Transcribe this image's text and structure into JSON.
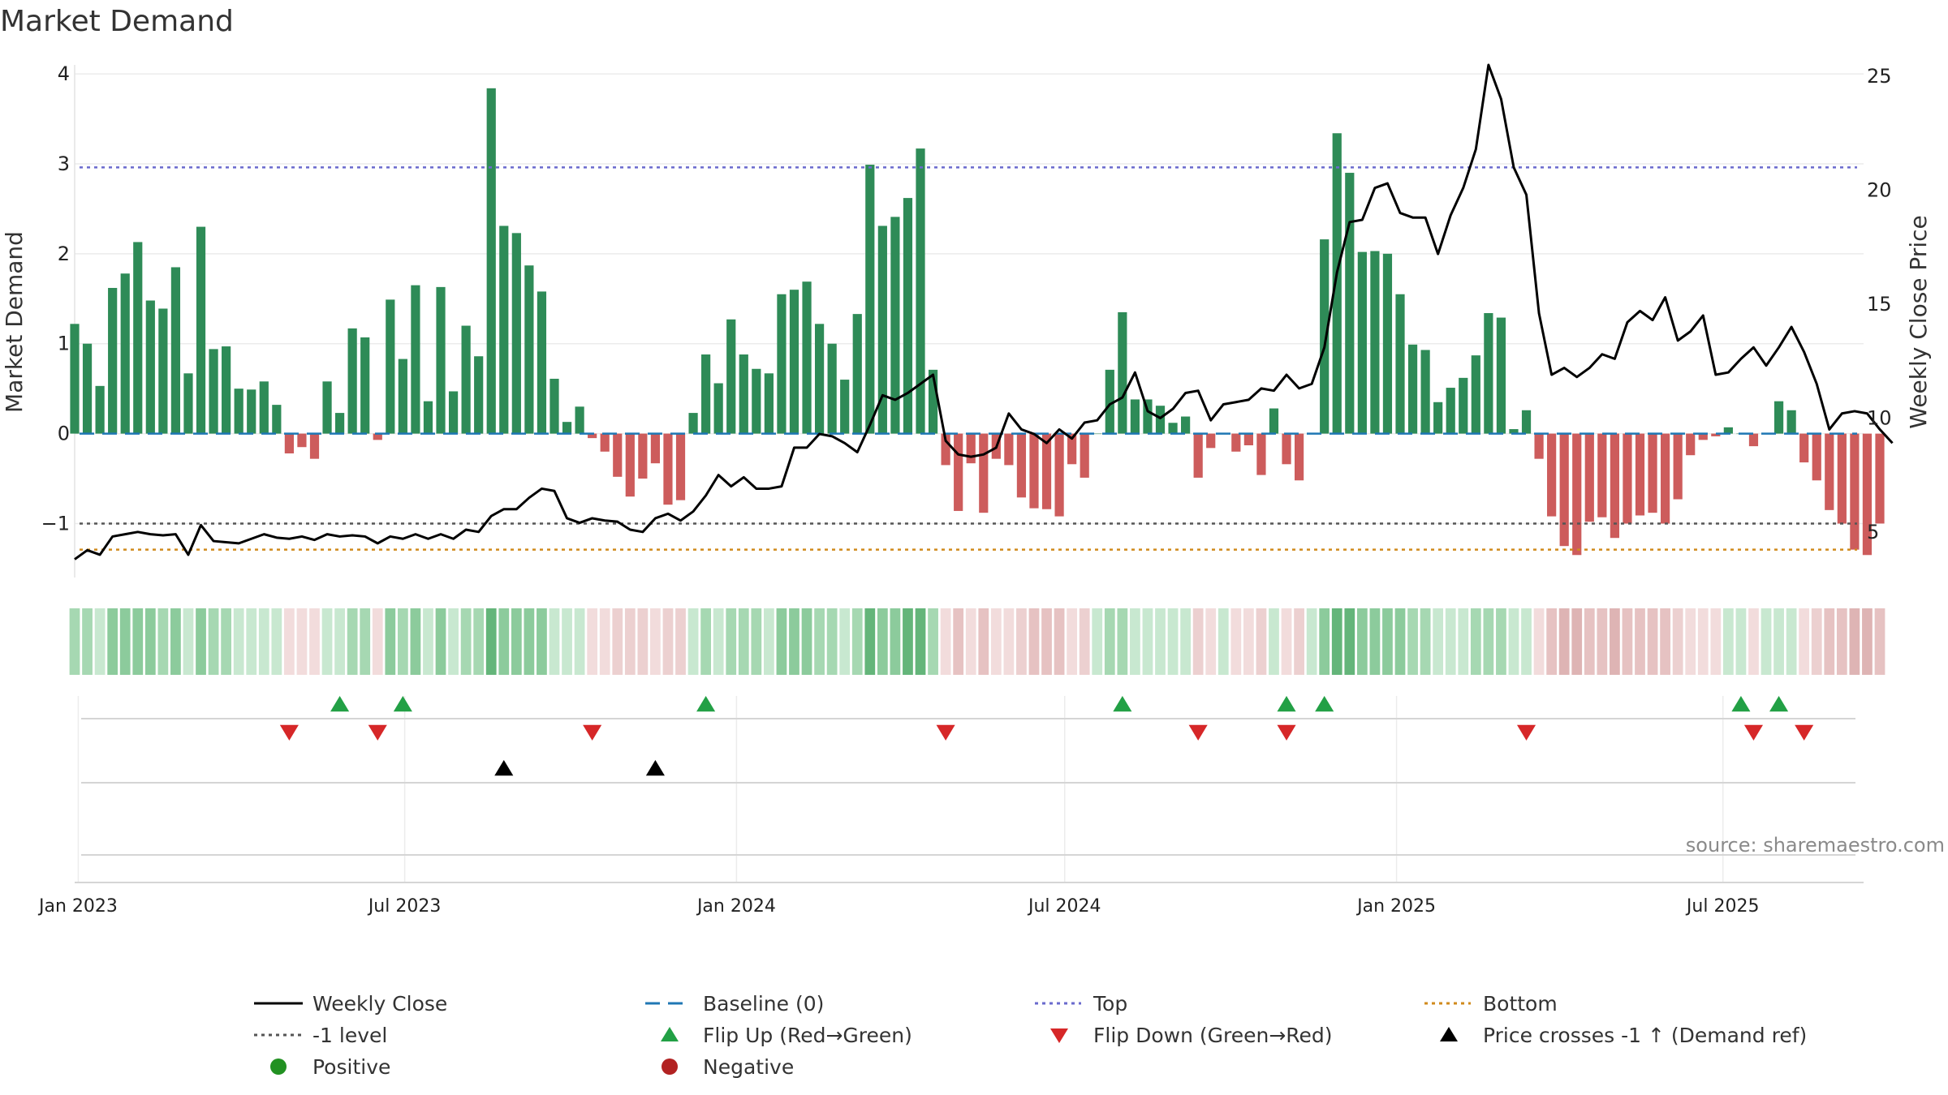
{
  "chart_data": {
    "type": "bar",
    "title": "Market Demand",
    "ylabel": "Market Demand",
    "y2label": "Weekly Close Price",
    "ylim": [
      -1.6,
      4.1
    ],
    "y2lim": [
      3.0,
      25.5
    ],
    "yticks": [
      -1,
      0,
      1,
      2,
      3,
      4
    ],
    "y2ticks": [
      5,
      10,
      15,
      20,
      25
    ],
    "xdomain": [
      "2022-12-30",
      "2025-09-17"
    ],
    "xticks": [
      {
        "date": "2023-01-01",
        "label": "Jan 2023"
      },
      {
        "date": "2023-07-01",
        "label": "Jul 2023"
      },
      {
        "date": "2024-01-01",
        "label": "Jan 2024"
      },
      {
        "date": "2024-07-01",
        "label": "Jul 2024"
      },
      {
        "date": "2025-01-01",
        "label": "Jan 2025"
      },
      {
        "date": "2025-07-01",
        "label": "Jul 2025"
      }
    ],
    "start_date": "2022-12-30",
    "interval_days": 7,
    "demand": [
      1.22,
      1.0,
      0.53,
      1.62,
      1.78,
      2.13,
      1.48,
      1.39,
      1.85,
      0.67,
      2.3,
      0.94,
      0.97,
      0.5,
      0.49,
      0.58,
      0.32,
      -0.22,
      -0.15,
      -0.28,
      0.58,
      0.23,
      1.17,
      1.07,
      -0.07,
      1.49,
      0.83,
      1.65,
      0.36,
      1.63,
      0.47,
      1.2,
      0.86,
      3.84,
      2.31,
      2.23,
      1.87,
      1.58,
      0.61,
      0.13,
      0.3,
      -0.05,
      -0.2,
      -0.48,
      -0.7,
      -0.5,
      -0.33,
      -0.79,
      -0.74,
      0.23,
      0.88,
      0.56,
      1.27,
      0.88,
      0.72,
      0.67,
      1.55,
      1.6,
      1.69,
      1.22,
      1.0,
      0.6,
      1.33,
      2.99,
      2.31,
      2.41,
      2.62,
      3.17,
      0.71,
      -0.35,
      -0.86,
      -0.33,
      -0.88,
      -0.28,
      -0.35,
      -0.71,
      -0.83,
      -0.84,
      -0.92,
      -0.34,
      -0.49,
      0.0,
      0.71,
      1.35,
      0.38,
      0.38,
      0.31,
      0.12,
      0.19,
      -0.49,
      -0.16,
      0.0,
      -0.2,
      -0.13,
      -0.46,
      0.28,
      -0.34,
      -0.52,
      0.0,
      2.16,
      3.34,
      2.9,
      2.02,
      2.03,
      2.0,
      1.55,
      0.99,
      0.93,
      0.35,
      0.51,
      0.62,
      0.87,
      1.34,
      1.29,
      0.05,
      0.26,
      -0.28,
      -0.92,
      -1.25,
      -1.35,
      -0.98,
      -0.93,
      -1.16,
      -1.0,
      -0.91,
      -0.88,
      -1.0,
      -0.73,
      -0.24,
      -0.07,
      -0.03,
      0.07,
      0.0,
      -0.14,
      0.0,
      0.36,
      0.26,
      -0.32,
      -0.52,
      -0.85,
      -1.0,
      -1.29,
      -1.35,
      -1.0
    ],
    "close": [
      3.8,
      4.2,
      4.0,
      4.8,
      4.9,
      5.0,
      4.9,
      4.85,
      4.9,
      4.0,
      5.3,
      4.6,
      4.55,
      4.5,
      4.7,
      4.9,
      4.75,
      4.7,
      4.8,
      4.65,
      4.9,
      4.8,
      4.85,
      4.8,
      4.5,
      4.8,
      4.7,
      4.9,
      4.7,
      4.9,
      4.7,
      5.1,
      5.0,
      5.7,
      6.0,
      6.0,
      6.5,
      6.9,
      6.8,
      5.6,
      5.4,
      5.6,
      5.5,
      5.45,
      5.1,
      5.0,
      5.6,
      5.8,
      5.5,
      5.9,
      6.6,
      7.5,
      7.0,
      7.4,
      6.9,
      6.9,
      7.0,
      8.7,
      8.7,
      9.3,
      9.2,
      8.9,
      8.5,
      9.7,
      11.0,
      10.8,
      11.1,
      11.5,
      11.9,
      9.0,
      8.4,
      8.3,
      8.4,
      8.7,
      10.2,
      9.5,
      9.3,
      8.9,
      9.5,
      9.1,
      9.8,
      9.9,
      10.6,
      10.9,
      12.0,
      10.3,
      10.0,
      10.4,
      11.1,
      11.2,
      9.9,
      10.6,
      10.7,
      10.8,
      11.3,
      11.2,
      11.9,
      11.3,
      11.5,
      13.1,
      16.4,
      18.6,
      18.7,
      20.1,
      20.3,
      19.0,
      18.8,
      18.8,
      17.2,
      18.9,
      20.1,
      21.8,
      25.5,
      24.0,
      21.0,
      19.8,
      14.6,
      11.9,
      12.2,
      11.8,
      12.2,
      12.8,
      12.6,
      14.2,
      14.7,
      14.3,
      15.3,
      13.4,
      13.8,
      14.5,
      11.9,
      12.0,
      12.6,
      13.1,
      12.3,
      13.1,
      14.0,
      12.9,
      11.5,
      9.5,
      10.2,
      10.3,
      10.2,
      9.5,
      8.9
    ],
    "baseline": 0,
    "top": 2.96,
    "neg_level": -1,
    "bottom": -1.29,
    "flip_up_index": [
      21,
      26,
      50,
      83,
      96,
      99,
      132,
      135
    ],
    "flip_down_index": [
      17,
      24,
      41,
      69,
      89,
      96,
      115,
      133,
      137
    ],
    "price_cross_index": [
      34,
      46
    ],
    "annotation": "source: sharemaestro.com",
    "legend": [
      "Weekly Close",
      "Baseline (0)",
      "Top",
      "Bottom",
      "-1 level",
      "Flip Up (Red→Green)",
      "Flip Down (Green→Red)",
      "Price crosses -1 ↑ (Demand ref)",
      "Positive",
      "Negative"
    ],
    "colors": {
      "positive": "#2e8b57",
      "negative": "#cd5c5c",
      "close": "#000000",
      "baseline": "#1f77b4",
      "top": "#6a6acd",
      "neg_level": "#555555",
      "bottom": "#d08a1c",
      "flip_up": "#22a045",
      "flip_down": "#d62728",
      "cross": "#000000",
      "legend_positive": "#229122",
      "legend_negative": "#b22222"
    }
  }
}
